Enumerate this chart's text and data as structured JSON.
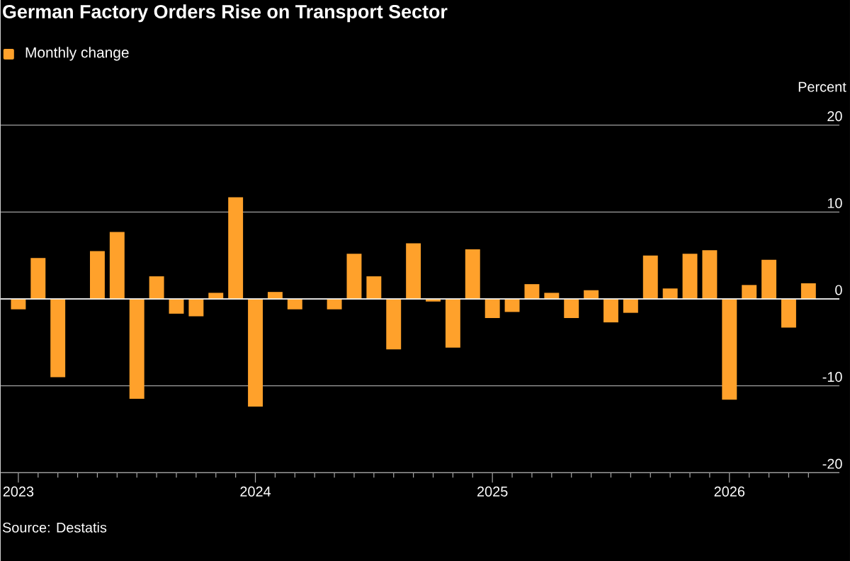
{
  "chart_data": {
    "type": "bar",
    "title": "German Factory Orders Rise on Transport Sector",
    "ylabel": "Percent",
    "x": [
      "2023-01",
      "2023-02",
      "2023-03",
      "2023-04",
      "2023-05",
      "2023-06",
      "2023-07",
      "2023-08",
      "2023-09",
      "2023-10",
      "2023-11",
      "2023-12",
      "2024-01",
      "2024-02",
      "2024-03",
      "2024-04",
      "2024-05",
      "2024-06",
      "2024-07",
      "2024-08",
      "2024-09",
      "2024-10",
      "2024-11",
      "2024-12",
      "2025-01",
      "2025-02",
      "2025-03",
      "2025-04",
      "2025-05",
      "2025-06",
      "2025-07",
      "2025-08",
      "2025-09",
      "2025-10",
      "2025-11",
      "2025-12",
      "2026-01",
      "2026-02",
      "2026-03",
      "2026-04",
      "2026-05"
    ],
    "series": [
      {
        "name": "Monthly change",
        "color": "#ffa12b",
        "values": [
          -1.2,
          4.7,
          -9.0,
          null,
          5.5,
          7.7,
          -11.5,
          2.6,
          -1.7,
          -2.0,
          0.7,
          11.7,
          -12.4,
          0.8,
          -1.2,
          null,
          -1.2,
          5.2,
          2.6,
          -5.8,
          6.4,
          -0.3,
          -5.6,
          5.7,
          -2.2,
          -1.5,
          1.7,
          0.7,
          -2.2,
          1.0,
          -2.7,
          -1.6,
          5.0,
          1.2,
          5.2,
          5.6,
          -11.6,
          1.6,
          4.5,
          -3.3,
          1.8
        ]
      }
    ],
    "xlim": [
      "2022-12-04",
      "2026-06-18"
    ],
    "xticks": [
      {
        "value": "2023-01",
        "label": "2023"
      },
      {
        "value": "2023-02",
        "label": null
      },
      {
        "value": "2023-03",
        "label": null
      },
      {
        "value": "2023-04",
        "label": null
      },
      {
        "value": "2023-05",
        "label": null
      },
      {
        "value": "2023-06",
        "label": null
      },
      {
        "value": "2023-07",
        "label": null
      },
      {
        "value": "2023-08",
        "label": null
      },
      {
        "value": "2023-09",
        "label": null
      },
      {
        "value": "2023-10",
        "label": null
      },
      {
        "value": "2023-11",
        "label": null
      },
      {
        "value": "2023-12",
        "label": null
      },
      {
        "value": "2024-01",
        "label": "2024"
      },
      {
        "value": "2024-02",
        "label": null
      },
      {
        "value": "2024-03",
        "label": null
      },
      {
        "value": "2024-04",
        "label": null
      },
      {
        "value": "2024-05",
        "label": null
      },
      {
        "value": "2024-06",
        "label": null
      },
      {
        "value": "2024-07",
        "label": null
      },
      {
        "value": "2024-08",
        "label": null
      },
      {
        "value": "2024-09",
        "label": null
      },
      {
        "value": "2024-10",
        "label": null
      },
      {
        "value": "2024-11",
        "label": null
      },
      {
        "value": "2024-12",
        "label": null
      },
      {
        "value": "2025-01",
        "label": "2025"
      },
      {
        "value": "2025-02",
        "label": null
      },
      {
        "value": "2025-03",
        "label": null
      },
      {
        "value": "2025-04",
        "label": null
      },
      {
        "value": "2025-05",
        "label": null
      },
      {
        "value": "2025-06",
        "label": null
      },
      {
        "value": "2025-07",
        "label": null
      },
      {
        "value": "2025-08",
        "label": null
      },
      {
        "value": "2025-09",
        "label": null
      },
      {
        "value": "2025-10",
        "label": null
      },
      {
        "value": "2025-11",
        "label": null
      },
      {
        "value": "2025-12",
        "label": null
      },
      {
        "value": "2026-01",
        "label": "2026"
      },
      {
        "value": "2026-02",
        "label": null
      },
      {
        "value": "2026-03",
        "label": null
      },
      {
        "value": "2026-04",
        "label": null
      },
      {
        "value": "2026-05",
        "label": null
      }
    ],
    "ylim": [
      -20,
      20
    ],
    "yticks": [
      -20,
      -10,
      0,
      10,
      20
    ],
    "grid": "y",
    "legend": "top left",
    "annotations": [
      "Source: Destatis"
    ]
  }
}
